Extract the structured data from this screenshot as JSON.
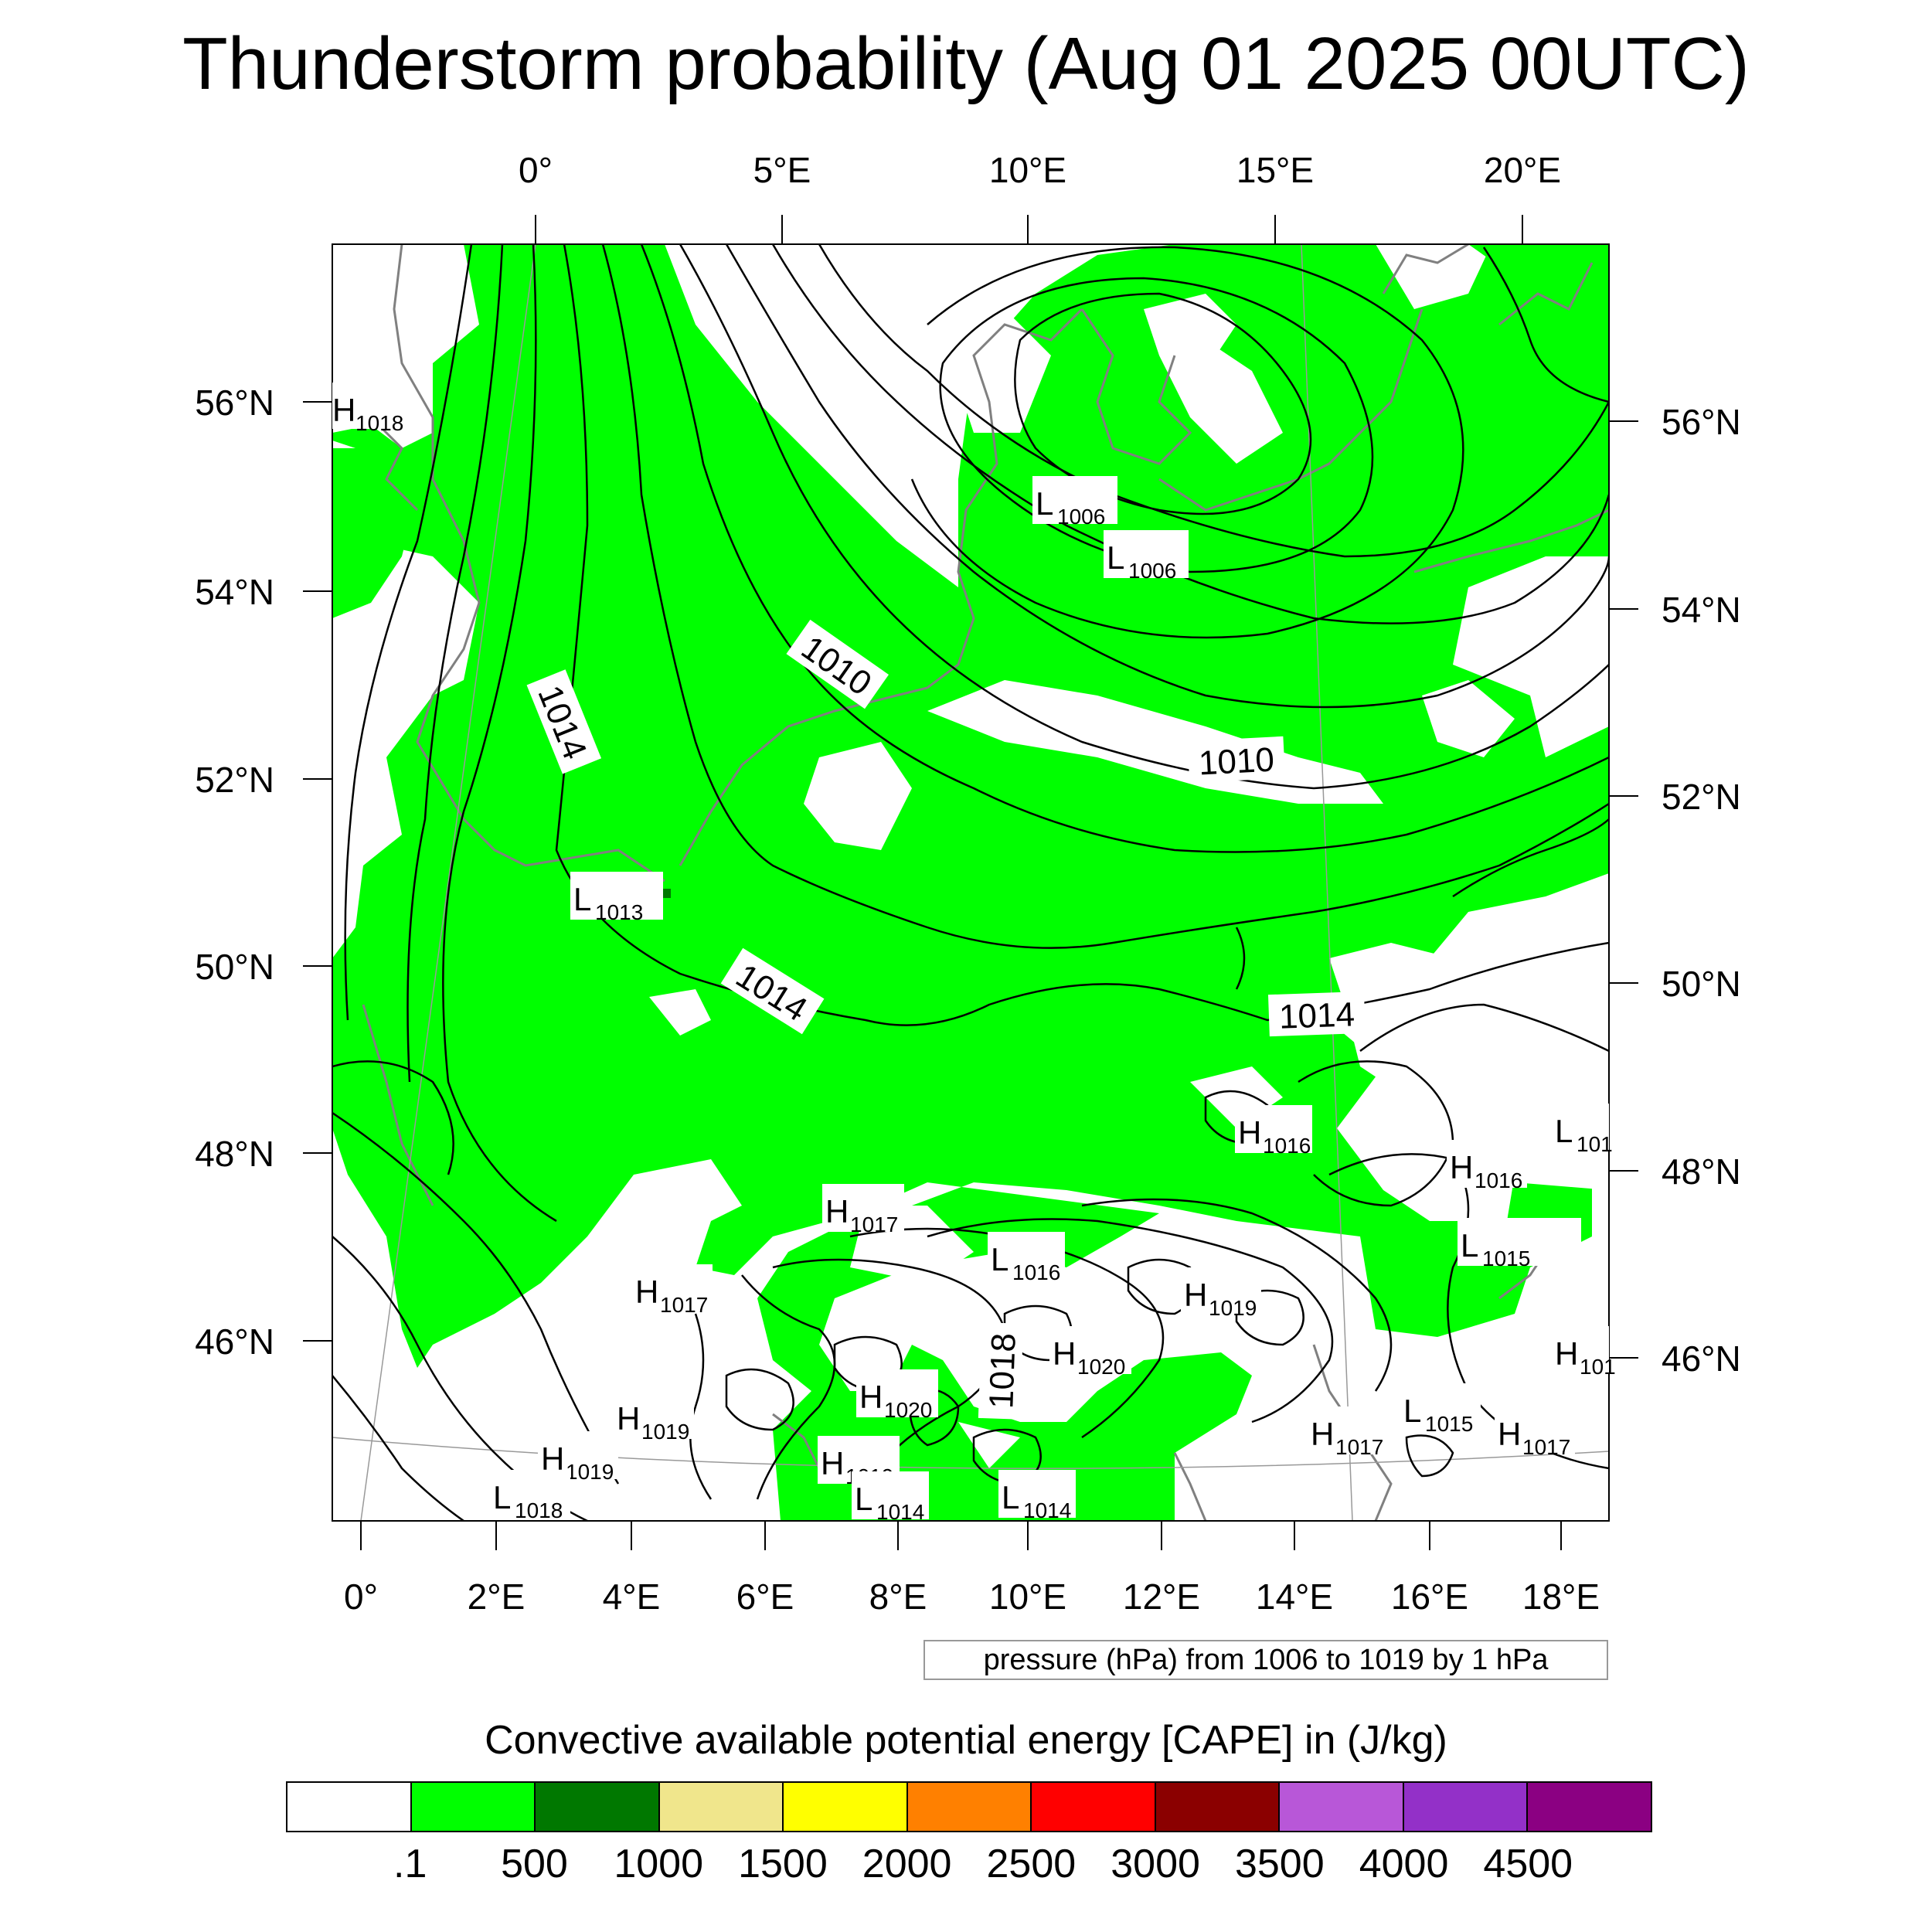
{
  "title": "Thunderstorm probability (Aug 01 2025 00UTC)",
  "top_lon_labels": [
    "0°",
    "5°E",
    "10°E",
    "15°E",
    "20°E"
  ],
  "bottom_lon_labels": [
    "0°",
    "2°E",
    "4°E",
    "6°E",
    "8°E",
    "10°E",
    "12°E",
    "14°E",
    "16°E",
    "18°E"
  ],
  "left_lat_labels": [
    "56°N",
    "54°N",
    "52°N",
    "50°N",
    "48°N",
    "46°N"
  ],
  "right_lat_labels": [
    "56°N",
    "54°N",
    "52°N",
    "50°N",
    "48°N",
    "46°N"
  ],
  "isobar_labels": [
    "1014",
    "1010",
    "1010",
    "1014",
    "1014",
    "1018"
  ],
  "pressure_centers": [
    {
      "type": "H",
      "value": "1018"
    },
    {
      "type": "L",
      "value": "1006"
    },
    {
      "type": "L",
      "value": "1006"
    },
    {
      "type": "L",
      "value": "1013"
    },
    {
      "type": "H",
      "value": "1016"
    },
    {
      "type": "L",
      "value": "101"
    },
    {
      "type": "H",
      "value": "1016"
    },
    {
      "type": "H",
      "value": "1017"
    },
    {
      "type": "L",
      "value": "1016"
    },
    {
      "type": "L",
      "value": "1015"
    },
    {
      "type": "H",
      "value": "1019"
    },
    {
      "type": "H",
      "value": "1017"
    },
    {
      "type": "H",
      "value": "1020"
    },
    {
      "type": "H",
      "value": "101"
    },
    {
      "type": "H",
      "value": "1020"
    },
    {
      "type": "H",
      "value": "1019"
    },
    {
      "type": "L",
      "value": "1015"
    },
    {
      "type": "H",
      "value": "1017"
    },
    {
      "type": "H",
      "value": "1017"
    },
    {
      "type": "H",
      "value": "1019"
    },
    {
      "type": "H",
      "value": "1019"
    },
    {
      "type": "L",
      "value": "1018"
    },
    {
      "type": "L",
      "value": "1014"
    },
    {
      "type": "L",
      "value": "1014"
    },
    {
      "type": "H",
      "value": "1019"
    }
  ],
  "contour_note": "pressure (hPa) from 1006 to 1019 by 1 hPa",
  "legend": {
    "title": "Convective available potential energy [CAPE] in (J/kg)",
    "colors": [
      "#ffffff",
      "#00ff00",
      "#007800",
      "#f0e68c",
      "#ffff00",
      "#ff8000",
      "#ff0000",
      "#8b0000",
      "#b857d8",
      "#9330c8",
      "#8b0082"
    ],
    "ticks": [
      ".1",
      "500",
      "1000",
      "1500",
      "2000",
      "2500",
      "3000",
      "3500",
      "4000",
      "4500"
    ]
  },
  "colors": {
    "cape_low": "#00ff00",
    "coastline": "#808080",
    "isobar": "#000000"
  }
}
